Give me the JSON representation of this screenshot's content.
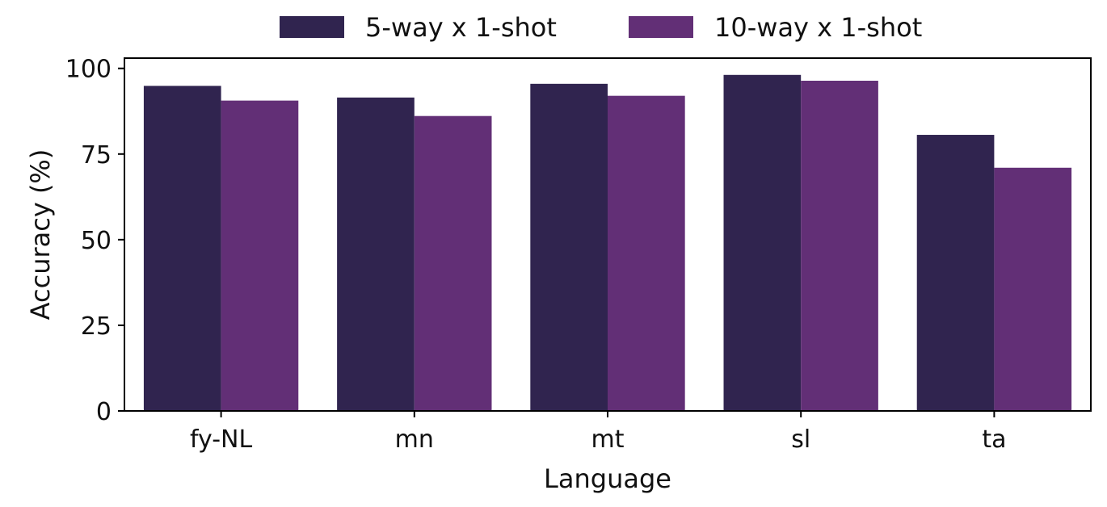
{
  "chart_data": {
    "type": "bar",
    "title": "",
    "xlabel": "Language",
    "ylabel": "Accuracy (%)",
    "categories": [
      "fy-NL",
      "mn",
      "mt",
      "sl",
      "ta"
    ],
    "series": [
      {
        "name": "5-way x 1-shot",
        "color": "#30244f",
        "values": [
          94.9,
          91.5,
          95.5,
          98.1,
          80.6
        ]
      },
      {
        "name": "10-way x 1-shot",
        "color": "#622f76",
        "values": [
          90.6,
          86.1,
          92.0,
          96.4,
          71.0
        ]
      }
    ],
    "ylim": [
      0,
      103
    ],
    "yticks": [
      0,
      25,
      50,
      75,
      100
    ],
    "grid": false,
    "legend_position": "top-center"
  }
}
